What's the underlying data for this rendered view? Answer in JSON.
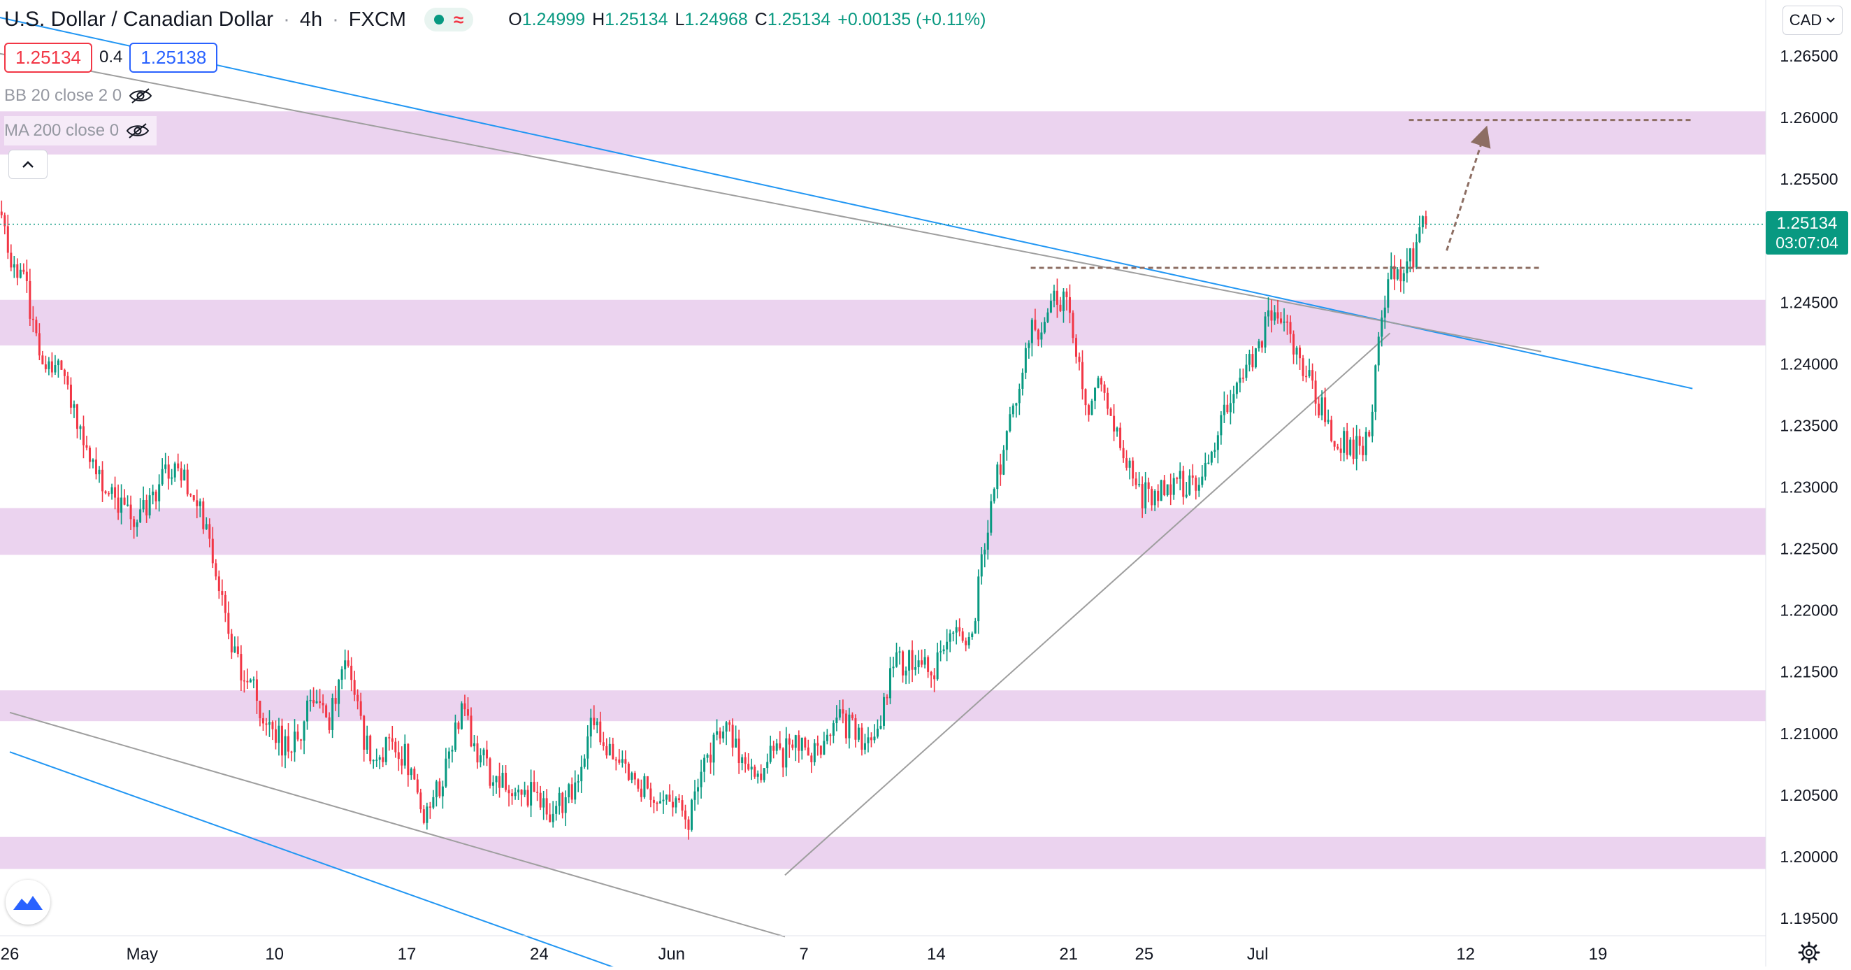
{
  "header": {
    "title": "U.S. Dollar / Canadian Dollar",
    "interval": "4h",
    "source": "FXCM",
    "ohlc": [
      {
        "key": "O",
        "value": "1.24999"
      },
      {
        "key": "H",
        "value": "1.25134"
      },
      {
        "key": "L",
        "value": "1.24968"
      },
      {
        "key": "C",
        "value": "1.25134"
      }
    ],
    "change": "+0.00135 (+0.11%)",
    "status_icon": "market-open-dot",
    "data_icon": "wave-icon"
  },
  "quote": {
    "bid": "1.25134",
    "spread": "0.4",
    "ask": "1.25138"
  },
  "indicators": [
    {
      "label": "BB 20 close 2 0",
      "icon": "eye-crossed-icon"
    },
    {
      "label": "MA 200 close 0",
      "icon": "eye-crossed-icon"
    }
  ],
  "currency_selector": "CAD",
  "last_price": {
    "value": "1.25134",
    "countdown": "03:07:04"
  },
  "colors": {
    "up": "#089981",
    "down": "#f23645",
    "zone": "#e1bee7",
    "trend_blue": "#2196f3",
    "trend_gray": "#9e9e9e",
    "forecast": "#8d6e63"
  },
  "chart_data": {
    "type": "candlestick",
    "symbol": "USDCAD",
    "timeframe": "4h",
    "ylim": [
      1.1925,
      1.2688
    ],
    "y_ticks": [
      "1.26500",
      "1.26000",
      "1.25500",
      "1.25000",
      "1.24500",
      "1.24000",
      "1.23500",
      "1.23000",
      "1.22500",
      "1.22000",
      "1.21500",
      "1.21000",
      "1.20500",
      "1.20000",
      "1.19500"
    ],
    "x_ticks": [
      {
        "label": "26",
        "date": "2021-04-26"
      },
      {
        "label": "May",
        "date": "2021-05-03"
      },
      {
        "label": "10",
        "date": "2021-05-10"
      },
      {
        "label": "17",
        "date": "2021-05-17"
      },
      {
        "label": "24",
        "date": "2021-05-24"
      },
      {
        "label": "Jun",
        "date": "2021-05-31"
      },
      {
        "label": "7",
        "date": "2021-06-07"
      },
      {
        "label": "14",
        "date": "2021-06-14"
      },
      {
        "label": "21",
        "date": "2021-06-21"
      },
      {
        "label": "25",
        "date": "2021-06-25"
      },
      {
        "label": "Jul",
        "date": "2021-07-01"
      },
      {
        "label": "12",
        "date": "2021-07-12"
      },
      {
        "label": "19",
        "date": "2021-07-19"
      }
    ],
    "last_price": 1.25134,
    "price_path": [
      [
        "2021-04-26",
        1.2495
      ],
      [
        "2021-04-27",
        1.246
      ],
      [
        "2021-04-28",
        1.24
      ],
      [
        "2021-04-29",
        1.2395
      ],
      [
        "2021-04-30",
        1.2345
      ],
      [
        "2021-05-01",
        1.23
      ],
      [
        "2021-05-03",
        1.2275
      ],
      [
        "2021-05-04",
        1.23
      ],
      [
        "2021-05-05",
        1.2318
      ],
      [
        "2021-05-06",
        1.229
      ],
      [
        "2021-05-07",
        1.224
      ],
      [
        "2021-05-08",
        1.2165
      ],
      [
        "2021-05-10",
        1.2105
      ],
      [
        "2021-05-11",
        1.2085
      ],
      [
        "2021-05-12",
        1.212
      ],
      [
        "2021-05-13",
        1.211
      ],
      [
        "2021-05-14",
        1.2155
      ],
      [
        "2021-05-15",
        1.209
      ],
      [
        "2021-05-17",
        1.2085
      ],
      [
        "2021-05-18",
        1.2025
      ],
      [
        "2021-05-19",
        1.206
      ],
      [
        "2021-05-20",
        1.212
      ],
      [
        "2021-05-21",
        1.208
      ],
      [
        "2021-05-22",
        1.206
      ],
      [
        "2021-05-24",
        1.205
      ],
      [
        "2021-05-25",
        1.2035
      ],
      [
        "2021-05-26",
        1.206
      ],
      [
        "2021-05-27",
        1.2115
      ],
      [
        "2021-05-28",
        1.208
      ],
      [
        "2021-05-29",
        1.206
      ],
      [
        "2021-05-31",
        1.2045
      ],
      [
        "2021-06-01",
        1.203
      ],
      [
        "2021-06-02",
        1.2075
      ],
      [
        "2021-06-03",
        1.211
      ],
      [
        "2021-06-04",
        1.2065
      ],
      [
        "2021-06-05",
        1.2075
      ],
      [
        "2021-06-07",
        1.209
      ],
      [
        "2021-06-08",
        1.208
      ],
      [
        "2021-06-09",
        1.211
      ],
      [
        "2021-06-10",
        1.21
      ],
      [
        "2021-06-11",
        1.2095
      ],
      [
        "2021-06-12",
        1.216
      ],
      [
        "2021-06-14",
        1.215
      ],
      [
        "2021-06-15",
        1.218
      ],
      [
        "2021-06-16",
        1.2175
      ],
      [
        "2021-06-17",
        1.228
      ],
      [
        "2021-06-18",
        1.235
      ],
      [
        "2021-06-19",
        1.242
      ],
      [
        "2021-06-21",
        1.246
      ],
      [
        "2021-06-22",
        1.2365
      ],
      [
        "2021-06-23",
        1.2385
      ],
      [
        "2021-06-24",
        1.233
      ],
      [
        "2021-06-25",
        1.229
      ],
      [
        "2021-06-26",
        1.23
      ],
      [
        "2021-06-28",
        1.2305
      ],
      [
        "2021-06-29",
        1.2345
      ],
      [
        "2021-06-30",
        1.239
      ],
      [
        "2021-07-01",
        1.241
      ],
      [
        "2021-07-02",
        1.244
      ],
      [
        "2021-07-03",
        1.242
      ],
      [
        "2021-07-05",
        1.2345
      ],
      [
        "2021-07-06",
        1.233
      ],
      [
        "2021-07-07",
        1.2335
      ],
      [
        "2021-07-08",
        1.247
      ],
      [
        "2021-07-09",
        1.2475
      ],
      [
        "2021-07-10",
        1.2513
      ]
    ],
    "zones": [
      {
        "from": 1.257,
        "to": 1.2605
      },
      {
        "from": 1.2415,
        "to": 1.2452
      },
      {
        "from": 1.2245,
        "to": 1.2283
      },
      {
        "from": 1.211,
        "to": 1.2135
      },
      {
        "from": 1.199,
        "to": 1.2016
      }
    ],
    "trendlines": [
      {
        "color": "blue",
        "from": [
          "2021-04-08",
          1.274
        ],
        "to": [
          "2021-07-24",
          1.238
        ]
      },
      {
        "color": "gray",
        "from": [
          "2021-04-16",
          1.268
        ],
        "to": [
          "2021-07-16",
          1.241
        ]
      },
      {
        "color": "gray",
        "from": [
          "2021-06-06",
          1.1985
        ],
        "to": [
          "2021-07-08",
          1.2425
        ]
      },
      {
        "color": "gray",
        "from": [
          "2021-04-26",
          1.2117
        ],
        "to": [
          "2021-06-06",
          1.1935
        ]
      },
      {
        "color": "blue",
        "from": [
          "2021-04-26",
          1.2085
        ],
        "to": [
          "2021-06-01",
          1.1888
        ]
      }
    ],
    "forecast": {
      "resistance_target": {
        "price": 1.2598,
        "from": "2021-07-09",
        "to": "2021-07-24"
      },
      "breakout_level": {
        "price": 1.2478,
        "from": "2021-06-19",
        "to": "2021-07-16"
      },
      "arrow": {
        "from": [
          "2021-07-11",
          1.2492
        ],
        "to": [
          "2021-07-13",
          1.2587
        ]
      }
    }
  }
}
